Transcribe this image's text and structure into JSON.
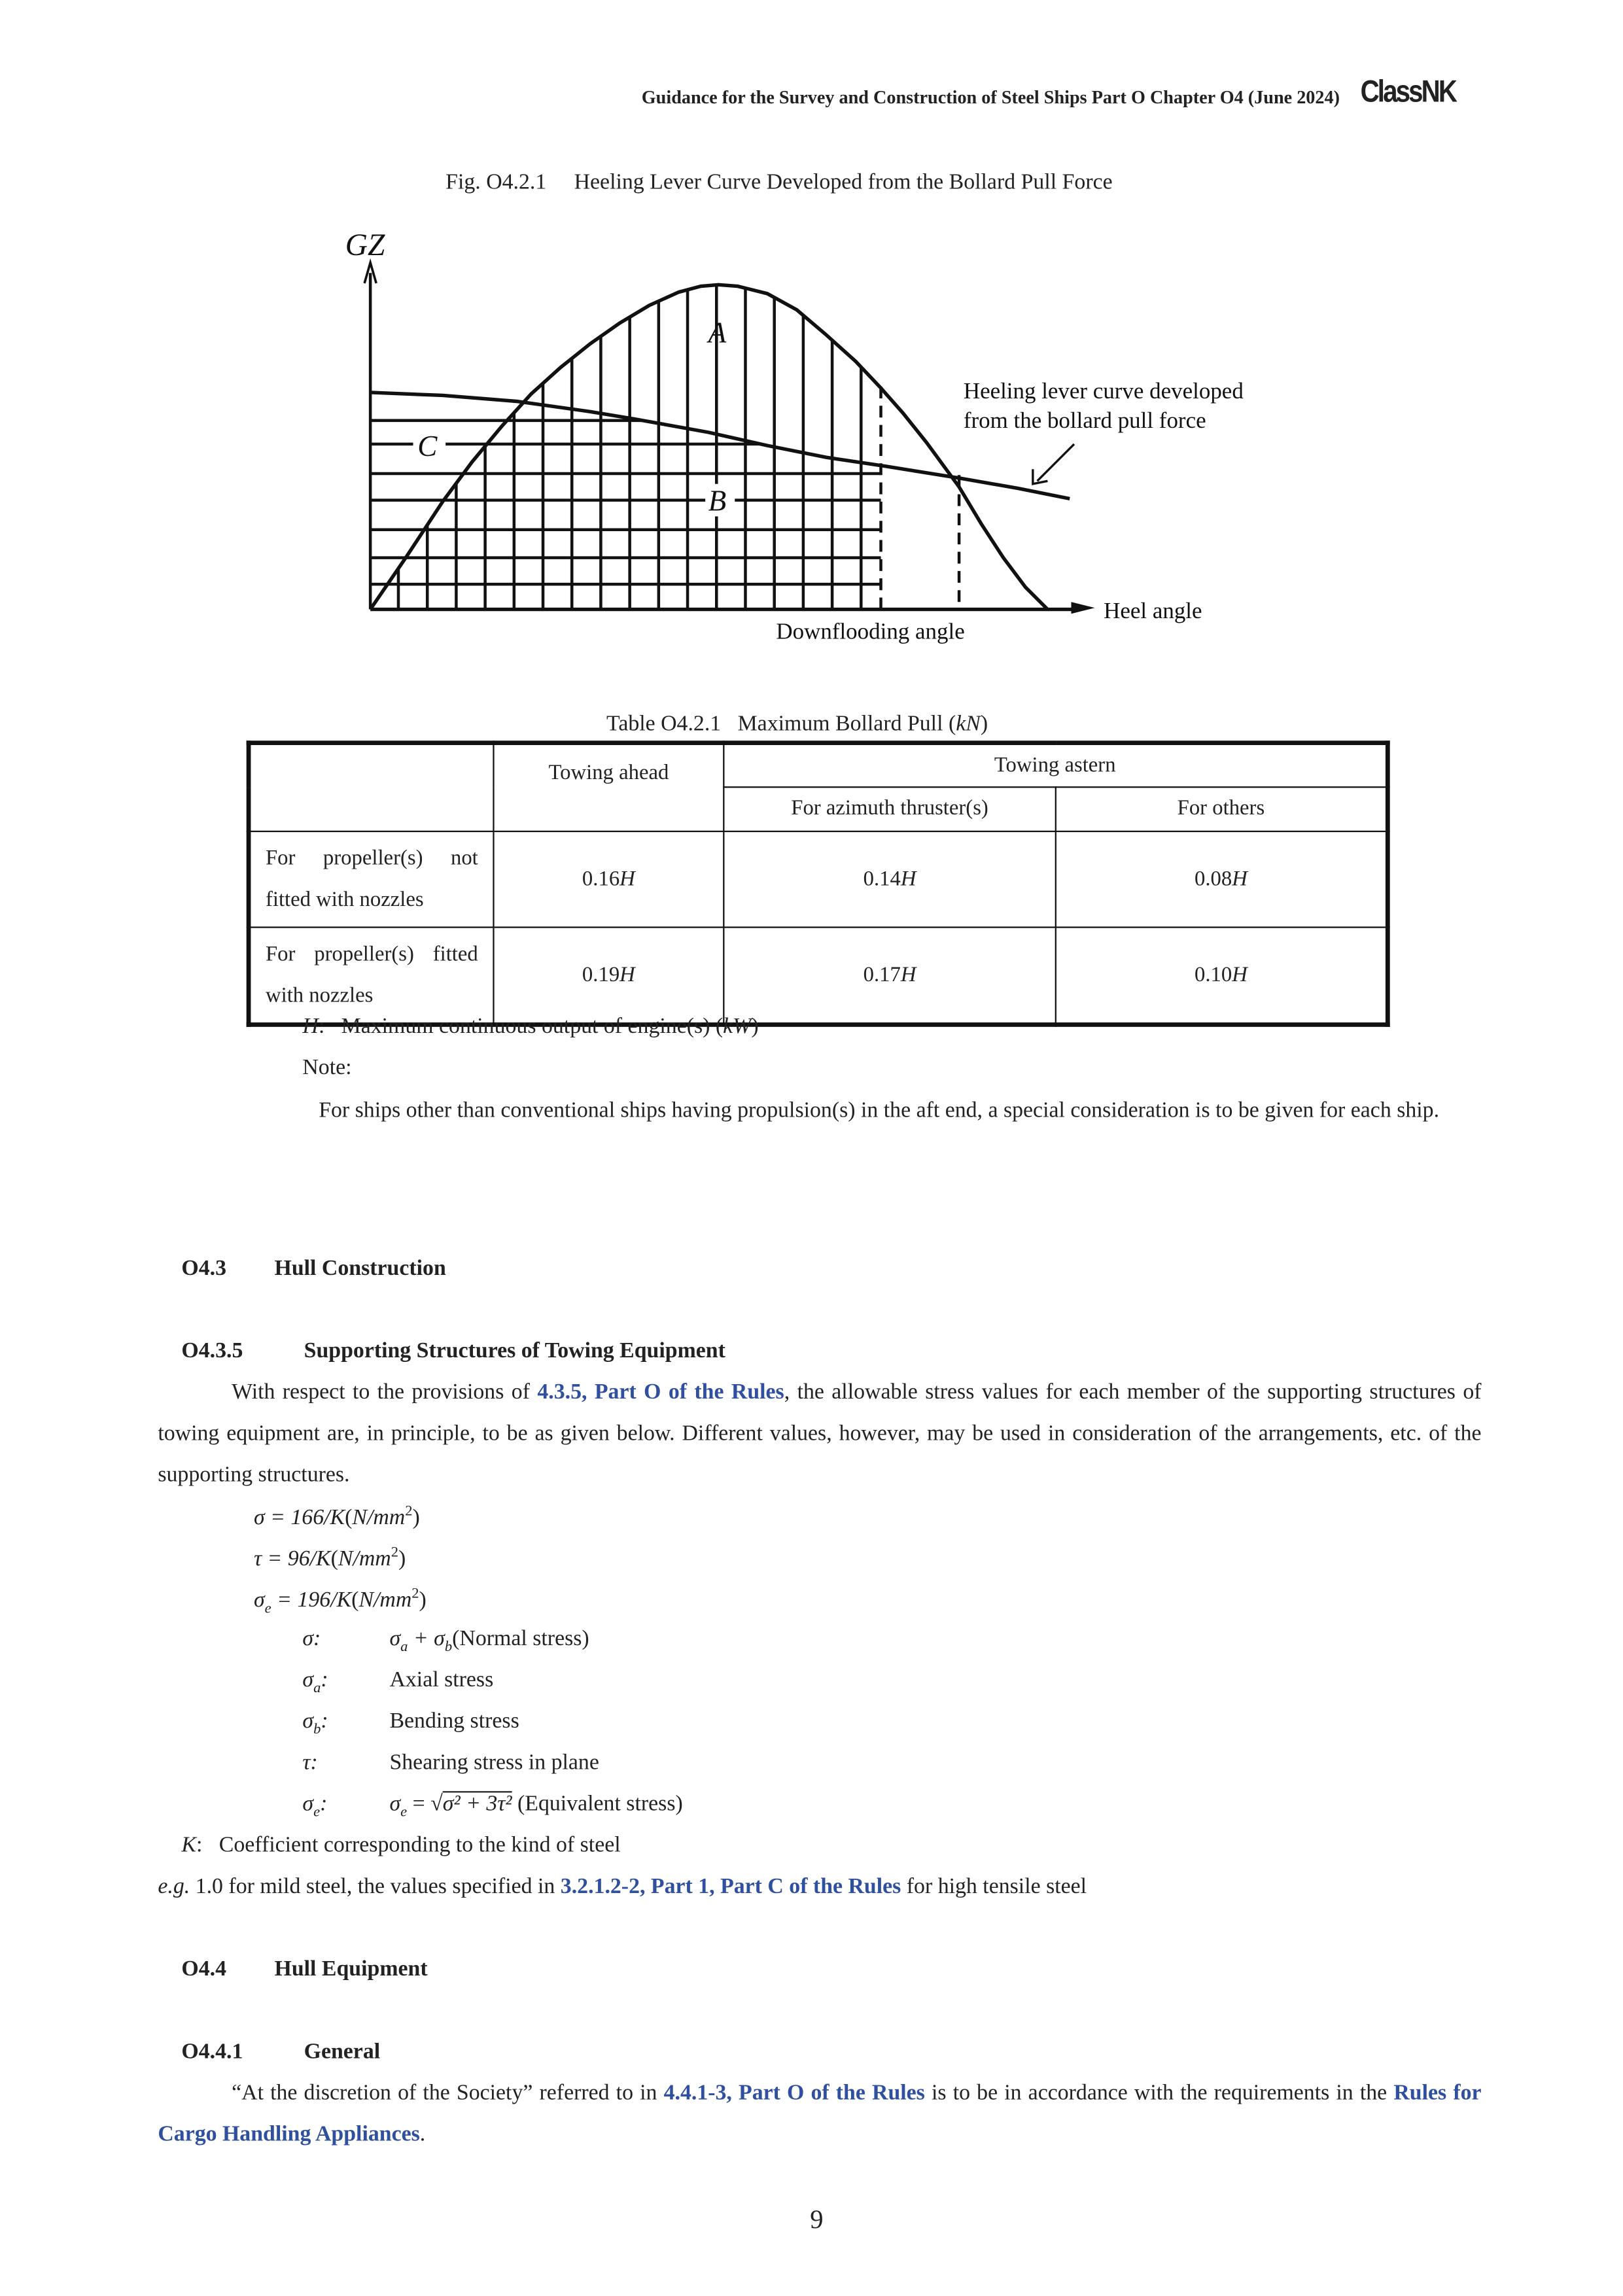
{
  "header": {
    "title": "Guidance for the Survey and Construction of Steel Ships Part O Chapter O4 (June 2024)",
    "logo": "ClassNK"
  },
  "figure": {
    "caption": "Fig. O4.2.1     Heeling Lever Curve Developed from the Bollard Pull Force",
    "y_axis_label": "GZ",
    "x_axis_label": "Heel angle",
    "label_A": "A",
    "label_B": "B",
    "label_C": "C",
    "annotation_line1": "Heeling lever curve developed",
    "annotation_line2": "from the bollard pull force",
    "downflooding_label": "Downflooding angle"
  },
  "table": {
    "caption": "Table O4.2.1   Maximum Bollard Pull (",
    "caption_unit": "kN",
    "caption_end": ")",
    "col_towing_ahead": "Towing ahead",
    "col_towing_astern": "Towing astern",
    "sub_azimuth": "For azimuth thruster(s)",
    "sub_others": "For others",
    "rows": [
      {
        "label1": "For  propeller(s)  not",
        "label2": "fitted with nozzles",
        "ahead": "0.16",
        "azimuth": "0.14",
        "others": "0.08"
      },
      {
        "label1": "For propeller(s) fitted",
        "label2": "with nozzles",
        "ahead": "0.19",
        "azimuth": "0.17",
        "others": "0.10"
      }
    ],
    "var": "H",
    "note_H_sym": "H",
    "note_H": ":   Maximum continuous output of engine(s) (",
    "note_H_unit": "kW",
    "note_H_end": ")",
    "note_label": "Note:",
    "note_text": "For ships other than conventional ships having propulsion(s) in the aft end, a special consideration is to be given for each ship."
  },
  "s43": {
    "num": "O4.3",
    "title": "Hull Construction"
  },
  "s435": {
    "num": "O4.3.5",
    "title": "Supporting Structures of Towing Equipment",
    "p_pre": "With respect to the provisions of ",
    "p_link": "4.3.5, Part O of the Rules",
    "p_post": ", the allowable stress values for each member of the supporting structures of towing equipment are, in principle, to be as given below. Different values, however, may be used in consideration of the arrangements, etc. of the supporting structures.",
    "eq1": "σ = 166/K",
    "eq2": "τ = 96/K",
    "eq3_sym": "σ",
    "eq3_sub": "e",
    "eq3": " = 196/K",
    "unit": "N/mm",
    "unit_exp": "2",
    "defs": [
      {
        "sym": "σ:",
        "text": "σ",
        "t_sub": "a",
        "t2": " + σ",
        "t2_sub": "b",
        "t3": "(Normal stress)"
      },
      {
        "sym": "σ",
        "sub": "a",
        "text": "Axial stress"
      },
      {
        "sym": "σ",
        "sub": "b",
        "text": "Bending stress"
      },
      {
        "sym": "τ:",
        "text": "Shearing stress in plane"
      },
      {
        "sym": "σ",
        "sub": "e",
        "text": "σ",
        "t_sub": "e",
        "t2": " = √",
        "t3": "σ² + 3τ²",
        "t4": " (Equivalent stress)"
      }
    ],
    "k_sym": "K",
    "k_text": ":   Coefficient corresponding to the kind of steel",
    "eg": "e.g.",
    "eg_text": " 1.0 for mild steel, the values specified in ",
    "eg_link": "3.2.1.2-2, Part 1, Part C of the Rules",
    "eg_post": " for high tensile steel"
  },
  "s44": {
    "num": "O4.4",
    "title": "Hull Equipment"
  },
  "s441": {
    "num": "O4.4.1",
    "title": "General",
    "p_pre": "“At the discretion of the Society” referred to in ",
    "p_link": "4.4.1-3, Part O of the Rules",
    "p_post": " is to be in accordance with the requirements in the ",
    "p_link2": "Rules for Cargo Handling Appliances",
    "p_end": "."
  },
  "page_number": "9"
}
